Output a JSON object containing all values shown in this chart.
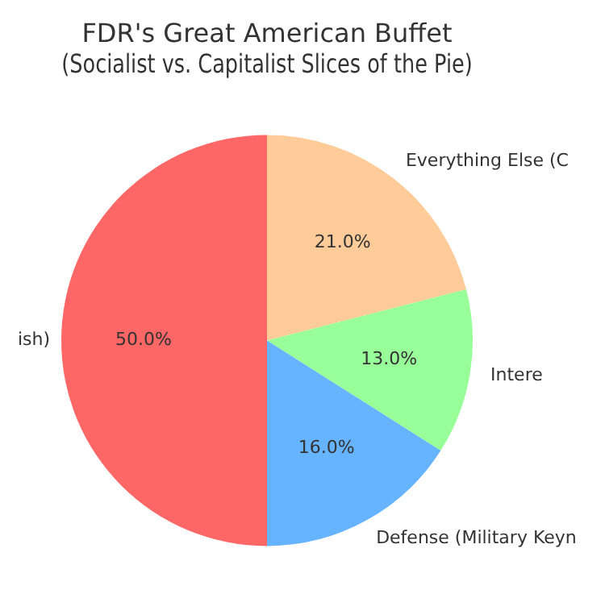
{
  "chart_data": {
    "type": "pie",
    "title": "FDR's Great American Buffet",
    "subtitle": "(Socialist vs. Capitalist Slices of the Pie)",
    "categories": [
      "Everything Else (C",
      "Intere",
      "Defense (Military Keyn",
      "ish)"
    ],
    "values": [
      21,
      13,
      16,
      50
    ],
    "value_labels": [
      "21.0%",
      "13.0%",
      "16.0%",
      "50.0%"
    ],
    "colors": [
      "#ffcc99",
      "#99ff99",
      "#66b3ff",
      "#ff6666"
    ],
    "legend": false
  }
}
